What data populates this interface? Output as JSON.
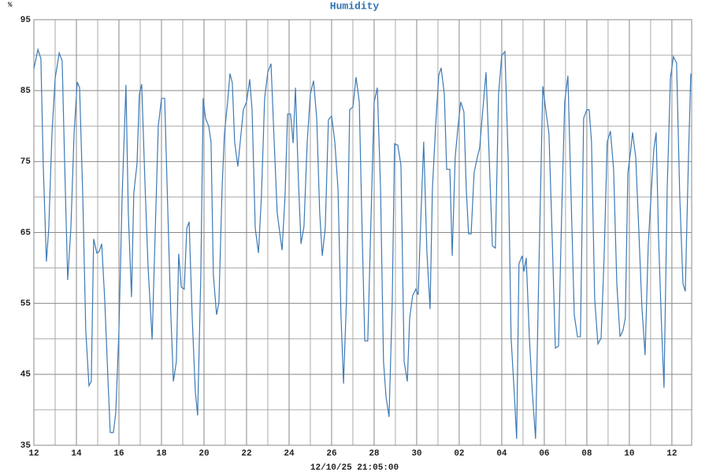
{
  "chart_data": {
    "type": "line",
    "title": "Humidity",
    "ylabel": "%",
    "xlabel": "12/10/25 21:05:00",
    "color": "#3d7ab5",
    "grid": true,
    "xlim": [
      0,
      30.93
    ],
    "ylim": [
      35,
      95
    ],
    "xticks": [
      {
        "value": 0,
        "label": "12"
      },
      {
        "value": 2,
        "label": "14"
      },
      {
        "value": 4,
        "label": "16"
      },
      {
        "value": 6,
        "label": "18"
      },
      {
        "value": 8,
        "label": "20"
      },
      {
        "value": 10,
        "label": "22"
      },
      {
        "value": 12,
        "label": "24"
      },
      {
        "value": 14,
        "label": "26"
      },
      {
        "value": 16,
        "label": "28"
      },
      {
        "value": 18,
        "label": "30"
      },
      {
        "value": 20,
        "label": "02"
      },
      {
        "value": 22,
        "label": "04"
      },
      {
        "value": 24,
        "label": "06"
      },
      {
        "value": 26,
        "label": "08"
      },
      {
        "value": 28,
        "label": "10"
      },
      {
        "value": 30,
        "label": "12"
      }
    ],
    "x_minor_ticks": [
      1,
      3,
      5,
      7,
      9,
      11,
      13,
      15,
      17,
      19,
      21,
      23,
      25,
      27,
      29
    ],
    "yticks": [
      35,
      45,
      55,
      65,
      75,
      85,
      95
    ],
    "y_minor_ticks": [
      40,
      50,
      60,
      70,
      80,
      90
    ],
    "x": [
      0,
      0.19,
      0.33,
      0.44,
      0.59,
      0.7,
      0.85,
      1.0,
      1.19,
      1.33,
      1.44,
      1.59,
      1.74,
      1.89,
      2.04,
      2.15,
      2.3,
      2.44,
      2.59,
      2.7,
      2.81,
      2.96,
      3.07,
      3.19,
      3.33,
      3.48,
      3.59,
      3.74,
      3.85,
      4.0,
      4.15,
      4.33,
      4.44,
      4.59,
      4.7,
      4.85,
      4.96,
      5.07,
      5.22,
      5.37,
      5.56,
      5.7,
      5.85,
      6.0,
      6.15,
      6.3,
      6.44,
      6.56,
      6.7,
      6.81,
      6.93,
      7.07,
      7.19,
      7.3,
      7.44,
      7.59,
      7.7,
      7.85,
      7.96,
      8.07,
      8.22,
      8.33,
      8.44,
      8.59,
      8.7,
      8.85,
      8.96,
      9.11,
      9.22,
      9.33,
      9.44,
      9.59,
      9.74,
      9.85,
      10.0,
      10.15,
      10.26,
      10.41,
      10.56,
      10.7,
      10.85,
      11.0,
      11.15,
      11.3,
      11.44,
      11.67,
      11.81,
      11.93,
      12.07,
      12.19,
      12.3,
      12.44,
      12.56,
      12.7,
      12.85,
      13.0,
      13.15,
      13.3,
      13.44,
      13.56,
      13.7,
      13.85,
      14.0,
      14.15,
      14.3,
      14.44,
      14.56,
      14.7,
      14.85,
      15.0,
      15.15,
      15.3,
      15.44,
      15.56,
      15.7,
      15.85,
      16.0,
      16.15,
      16.3,
      16.44,
      16.56,
      16.7,
      16.85,
      16.96,
      17.11,
      17.26,
      17.41,
      17.56,
      17.67,
      17.81,
      17.96,
      18.07,
      18.22,
      18.33,
      18.48,
      18.63,
      18.74,
      18.89,
      19.04,
      19.15,
      19.3,
      19.41,
      19.56,
      19.67,
      19.81,
      19.93,
      20.07,
      20.22,
      20.33,
      20.44,
      20.56,
      20.7,
      20.85,
      20.96,
      21.11,
      21.26,
      21.41,
      21.56,
      21.7,
      21.85,
      22.0,
      22.15,
      22.3,
      22.44,
      22.59,
      22.7,
      22.81,
      22.96,
      23.04,
      23.15,
      23.3,
      23.44,
      23.59,
      23.74,
      23.93,
      24.07,
      24.22,
      24.37,
      24.52,
      24.67,
      24.81,
      24.96,
      25.11,
      25.26,
      25.41,
      25.56,
      25.7,
      25.85,
      26.0,
      26.11,
      26.22,
      26.37,
      26.52,
      26.67,
      26.81,
      26.96,
      27.11,
      27.26,
      27.41,
      27.56,
      27.7,
      27.81,
      27.93,
      28.07,
      28.15,
      28.3,
      28.44,
      28.59,
      28.74,
      28.89,
      29.04,
      29.15,
      29.26,
      29.37,
      29.52,
      29.63,
      29.78,
      29.93,
      30.07,
      30.22,
      30.37,
      30.52,
      30.63,
      30.78,
      30.89
    ],
    "values": [
      88.1,
      90.8,
      89.5,
      74.5,
      60.9,
      65.6,
      78.9,
      86.7,
      90.3,
      89.2,
      75.6,
      58.3,
      65.6,
      78.9,
      86.2,
      85.4,
      70.1,
      51.2,
      43.4,
      44.0,
      64.1,
      62.1,
      62.3,
      63.4,
      55.6,
      44.6,
      36.8,
      36.8,
      39.6,
      51.2,
      70.1,
      85.8,
      67.8,
      55.9,
      70.6,
      74.7,
      84.5,
      85.9,
      72.3,
      60.1,
      49.9,
      64.5,
      80.0,
      83.9,
      83.9,
      67.8,
      53.4,
      44.0,
      46.8,
      62.0,
      57.3,
      57.0,
      65.6,
      66.5,
      53.4,
      42.6,
      39.2,
      59.0,
      83.9,
      81.1,
      80.0,
      77.8,
      59.0,
      53.4,
      55.1,
      71.2,
      78.9,
      83.4,
      87.4,
      86.1,
      77.8,
      74.3,
      78.9,
      82.3,
      83.4,
      86.6,
      82.3,
      65.6,
      62.1,
      70.1,
      83.9,
      87.6,
      88.8,
      77.8,
      67.8,
      62.5,
      70.1,
      81.7,
      81.7,
      77.6,
      85.4,
      72.3,
      63.4,
      65.8,
      77.6,
      84.5,
      86.4,
      81.1,
      67.8,
      61.7,
      65.6,
      80.9,
      81.4,
      77.8,
      71.2,
      53.4,
      43.7,
      55.6,
      82.3,
      82.7,
      86.9,
      83.4,
      64.5,
      49.7,
      49.7,
      66.7,
      83.4,
      85.4,
      71.2,
      46.8,
      41.8,
      39.0,
      55.1,
      77.5,
      77.3,
      74.5,
      46.8,
      44.0,
      52.9,
      56.1,
      57.0,
      56.2,
      69.0,
      77.8,
      62.3,
      54.2,
      71.2,
      80.0,
      87.2,
      88.2,
      84.5,
      73.9,
      73.9,
      61.7,
      75.6,
      79.5,
      83.4,
      82.0,
      71.2,
      64.8,
      64.8,
      73.4,
      75.6,
      76.9,
      82.3,
      87.6,
      75.6,
      63.1,
      62.8,
      84.5,
      90.0,
      90.5,
      75.6,
      50.1,
      42.3,
      35.9,
      60.6,
      61.7,
      59.5,
      61.4,
      50.1,
      42.3,
      35.9,
      59.0,
      85.6,
      82.3,
      78.9,
      64.5,
      48.7,
      49.0,
      66.7,
      83.4,
      87.1,
      70.1,
      53.4,
      50.3,
      50.3,
      81.1,
      82.3,
      82.3,
      77.8,
      55.6,
      49.3,
      50.1,
      61.2,
      77.8,
      79.3,
      73.9,
      57.8,
      50.3,
      51.2,
      52.9,
      73.4,
      76.7,
      79.1,
      75.6,
      65.6,
      54.5,
      47.7,
      63.4,
      71.2,
      76.7,
      79.1,
      64.5,
      51.2,
      43.1,
      71.2,
      86.7,
      89.8,
      88.9,
      70.1,
      57.8,
      56.7,
      75.6,
      87.4
    ]
  }
}
